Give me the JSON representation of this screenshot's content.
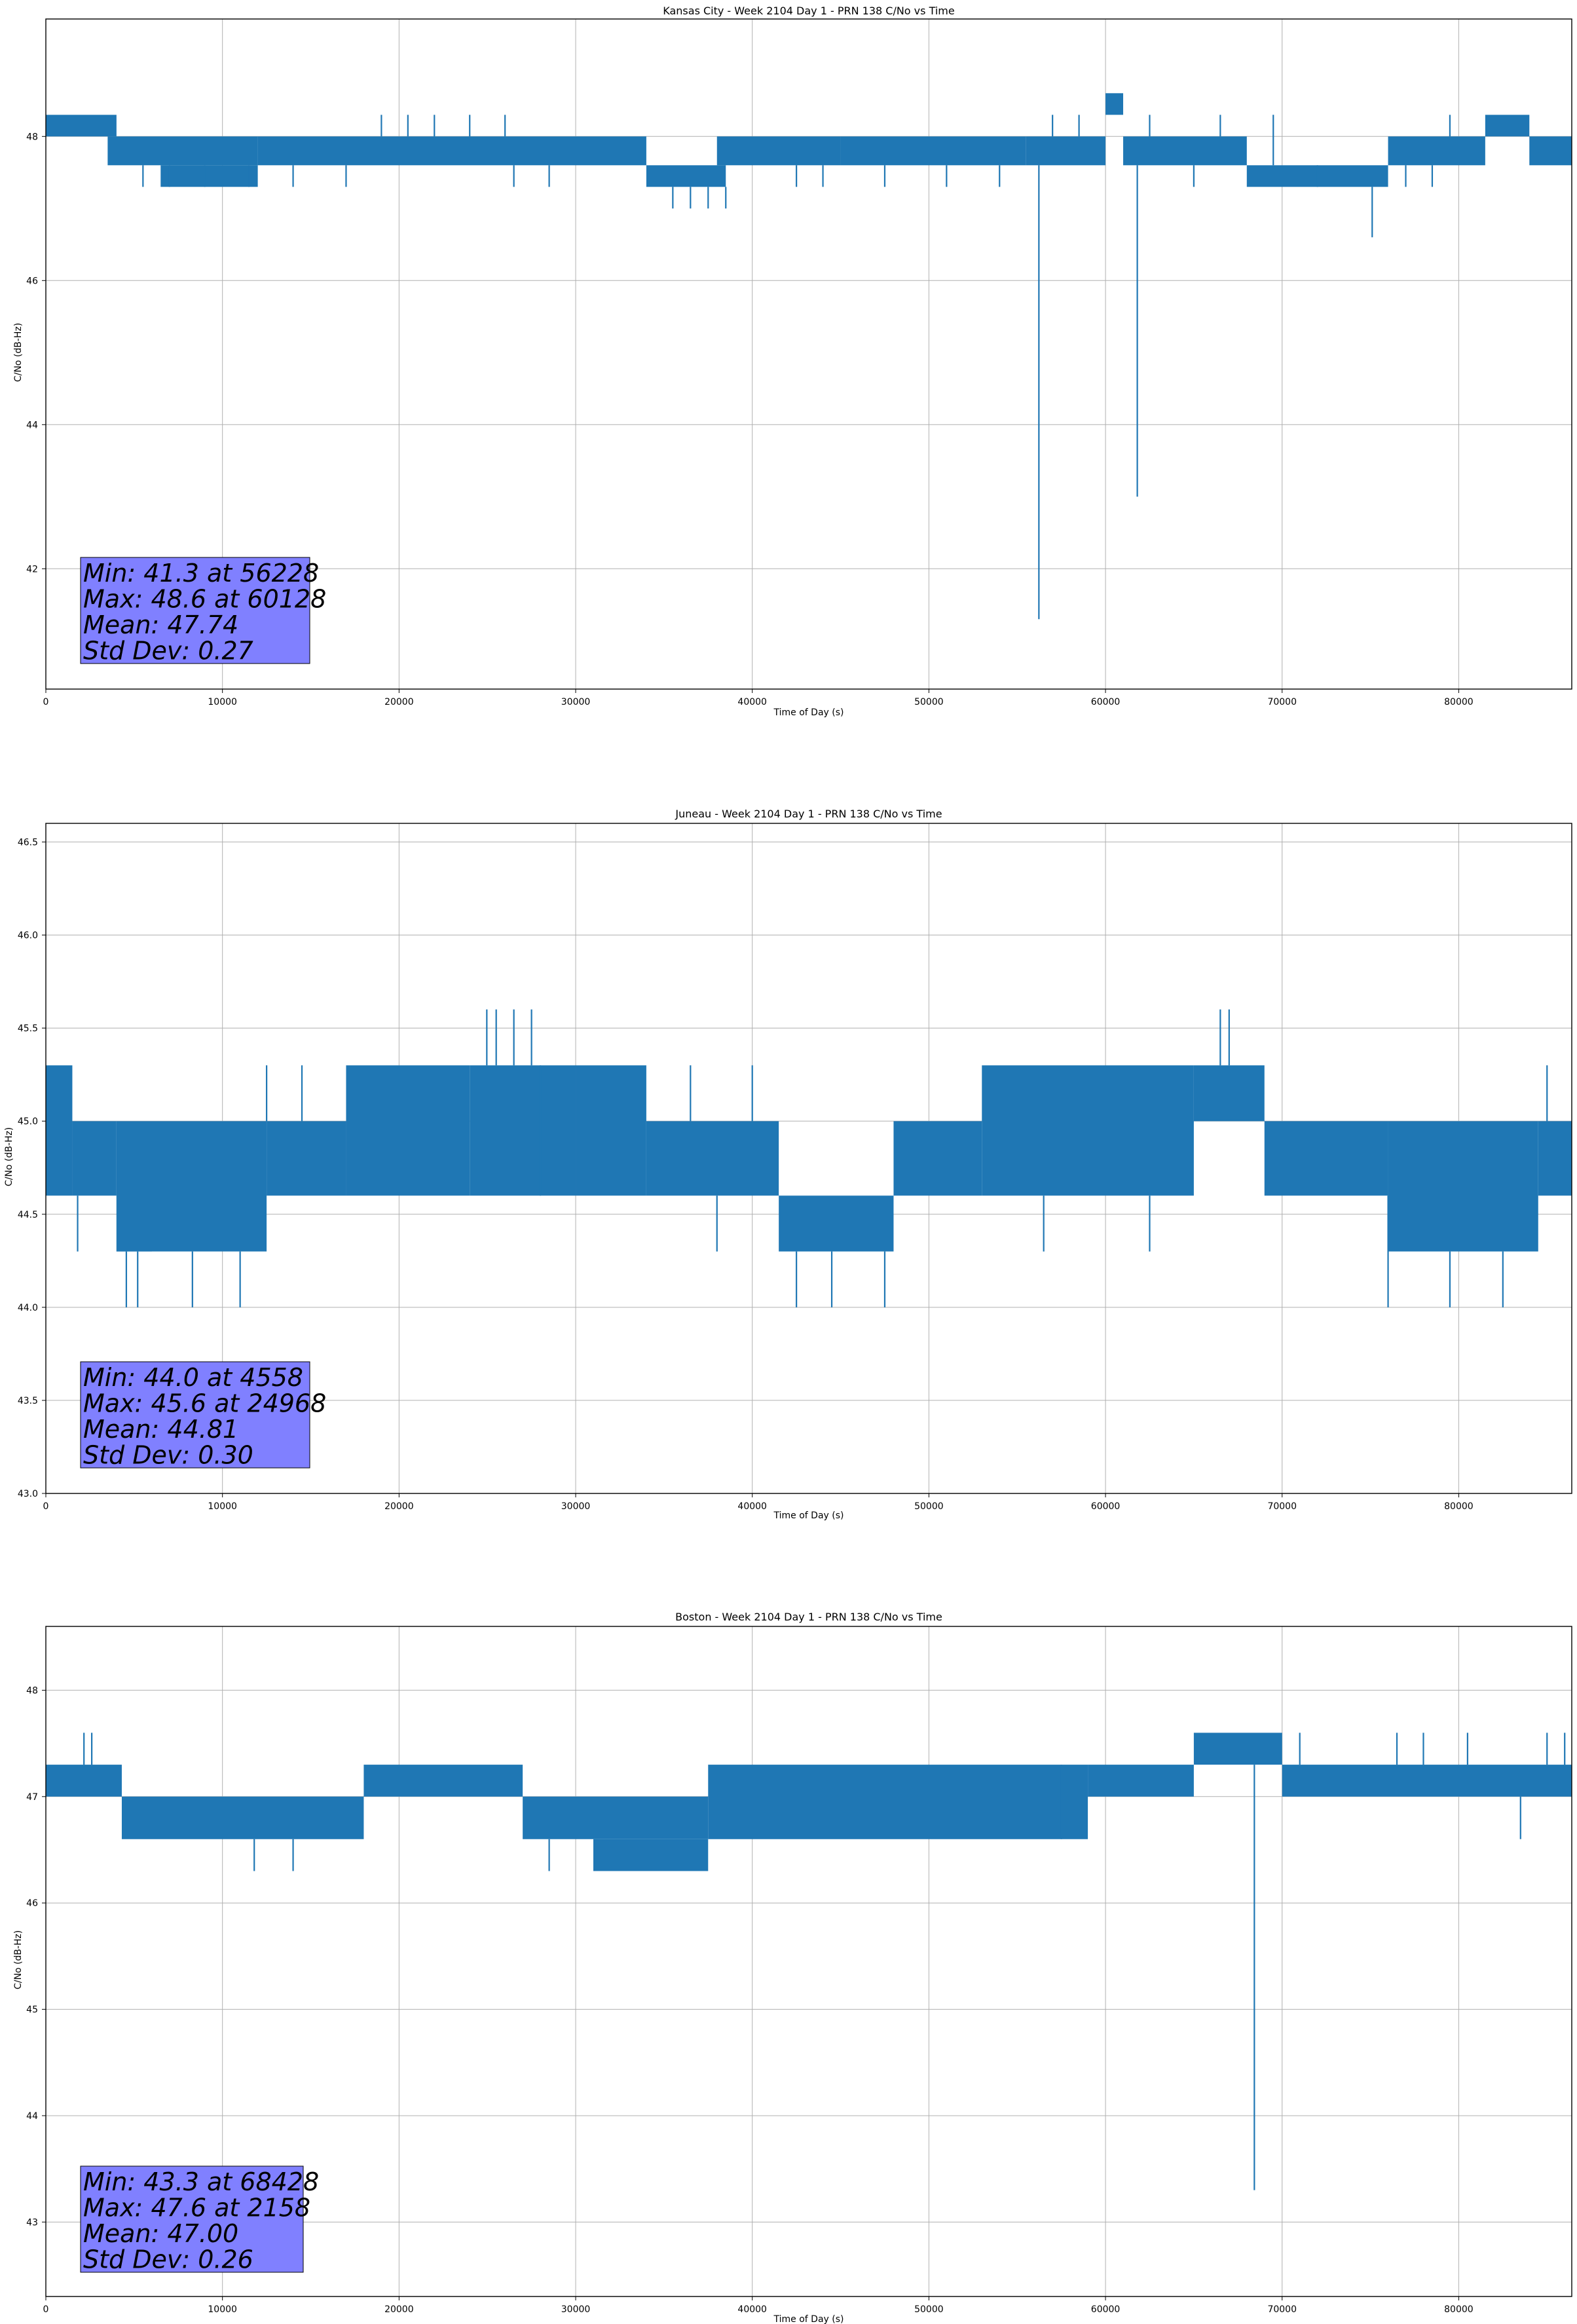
{
  "chart_data": [
    {
      "type": "line",
      "title": "Kansas City - Week 2104 Day 1 - PRN 138 C/No vs Time",
      "xlabel": "Time of Day (s)",
      "ylabel": "C/No (dB-Hz)",
      "xlim": [
        0,
        86400
      ],
      "ylim": [
        40.33,
        49.63
      ],
      "xticks": [
        0,
        10000,
        20000,
        30000,
        40000,
        50000,
        60000,
        70000,
        80000
      ],
      "yticks": [
        42,
        44,
        46,
        48
      ],
      "ytick_decimals": 0,
      "grid": true,
      "color": "#1f77b4",
      "stats_box": [
        "Min: 41.3 at 56228",
        "Max: 48.6 at 60128",
        "Mean: 47.74",
        "Std Dev: 0.27"
      ],
      "series": [
        {
          "segments": [
            {
              "x": [
                0,
                4000
              ],
              "y": [
                48.0,
                48.3
              ]
            },
            {
              "x": [
                3500,
                12000
              ],
              "y": [
                47.6,
                48.0
              ]
            },
            {
              "x": [
                6500,
                12000
              ],
              "y": [
                47.3,
                47.6
              ]
            },
            {
              "x": [
                12000,
                34000
              ],
              "y": [
                47.6,
                48.0
              ]
            },
            {
              "x": [
                34000,
                38500
              ],
              "y": [
                47.3,
                47.6
              ]
            },
            {
              "x": [
                38000,
                45000
              ],
              "y": [
                47.6,
                48.0
              ]
            },
            {
              "x": [
                45000,
                55500
              ],
              "y": [
                47.6,
                48.0
              ]
            },
            {
              "x": [
                55500,
                60000
              ],
              "y": [
                47.6,
                48.0
              ]
            },
            {
              "x": [
                60000,
                61000
              ],
              "y": [
                48.3,
                48.6
              ]
            },
            {
              "x": [
                61000,
                68000
              ],
              "y": [
                47.6,
                48.0
              ]
            },
            {
              "x": [
                68000,
                76000
              ],
              "y": [
                47.3,
                47.6
              ]
            },
            {
              "x": [
                76000,
                81500
              ],
              "y": [
                47.6,
                48.0
              ]
            },
            {
              "x": [
                81500,
                84000
              ],
              "y": [
                48.0,
                48.3
              ]
            },
            {
              "x": [
                84000,
                86400
              ],
              "y": [
                47.6,
                48.0
              ]
            }
          ],
          "spikes": [
            {
              "x": 4000,
              "y": 48.3
            },
            {
              "x": 5500,
              "y": 47.3
            },
            {
              "x": 7000,
              "y": 47.3
            },
            {
              "x": 9000,
              "y": 47.3
            },
            {
              "x": 11500,
              "y": 47.3
            },
            {
              "x": 14000,
              "y": 47.3
            },
            {
              "x": 17000,
              "y": 47.3
            },
            {
              "x": 19000,
              "y": 48.3
            },
            {
              "x": 20500,
              "y": 48.3
            },
            {
              "x": 22000,
              "y": 48.3
            },
            {
              "x": 24000,
              "y": 48.3
            },
            {
              "x": 26000,
              "y": 48.3
            },
            {
              "x": 26500,
              "y": 47.3
            },
            {
              "x": 28500,
              "y": 47.3
            },
            {
              "x": 35500,
              "y": 47.0
            },
            {
              "x": 36500,
              "y": 47.0
            },
            {
              "x": 37500,
              "y": 47.0
            },
            {
              "x": 38500,
              "y": 47.0
            },
            {
              "x": 42500,
              "y": 47.3
            },
            {
              "x": 44000,
              "y": 47.3
            },
            {
              "x": 47500,
              "y": 47.3
            },
            {
              "x": 51000,
              "y": 47.3
            },
            {
              "x": 54000,
              "y": 47.3
            },
            {
              "x": 56228,
              "y": 41.3
            },
            {
              "x": 57000,
              "y": 48.3
            },
            {
              "x": 58500,
              "y": 48.3
            },
            {
              "x": 61800,
              "y": 43.0
            },
            {
              "x": 62500,
              "y": 48.3
            },
            {
              "x": 65000,
              "y": 47.3
            },
            {
              "x": 66500,
              "y": 48.3
            },
            {
              "x": 69500,
              "y": 48.3
            },
            {
              "x": 72000,
              "y": 47.3
            },
            {
              "x": 75100,
              "y": 46.6
            },
            {
              "x": 77000,
              "y": 47.3
            },
            {
              "x": 78500,
              "y": 47.3
            },
            {
              "x": 79500,
              "y": 48.3
            }
          ]
        }
      ]
    },
    {
      "type": "line",
      "title": "Juneau - Week 2104 Day 1 - PRN 138 C/No vs Time",
      "xlabel": "Time of Day (s)",
      "ylabel": "C/No (dB-Hz)",
      "xlim": [
        0,
        86400
      ],
      "ylim": [
        43.0,
        46.6
      ],
      "xticks": [
        0,
        10000,
        20000,
        30000,
        40000,
        50000,
        60000,
        70000,
        80000
      ],
      "yticks": [
        43.0,
        43.5,
        44.0,
        44.5,
        45.0,
        45.5,
        46.0,
        46.5
      ],
      "ytick_decimals": 1,
      "grid": true,
      "color": "#1f77b4",
      "stats_box": [
        "Min: 44.0 at 4558",
        "Max: 45.6 at 24968",
        "Mean: 44.81",
        "Std Dev: 0.30"
      ],
      "series": [
        {
          "segments": [
            {
              "x": [
                0,
                1500
              ],
              "y": [
                44.6,
                45.3
              ]
            },
            {
              "x": [
                1500,
                4000
              ],
              "y": [
                44.6,
                45.0
              ]
            },
            {
              "x": [
                4000,
                6000
              ],
              "y": [
                44.3,
                44.6
              ]
            },
            {
              "x": [
                4000,
                12500
              ],
              "y": [
                44.3,
                45.0
              ]
            },
            {
              "x": [
                12500,
                17000
              ],
              "y": [
                44.6,
                45.0
              ]
            },
            {
              "x": [
                17000,
                24000
              ],
              "y": [
                44.6,
                45.3
              ]
            },
            {
              "x": [
                24000,
                30000
              ],
              "y": [
                44.6,
                45.3
              ]
            },
            {
              "x": [
                30000,
                34000
              ],
              "y": [
                44.6,
                45.3
              ]
            },
            {
              "x": [
                34000,
                41500
              ],
              "y": [
                44.6,
                45.0
              ]
            },
            {
              "x": [
                41500,
                48000
              ],
              "y": [
                44.3,
                44.6
              ]
            },
            {
              "x": [
                48000,
                53000
              ],
              "y": [
                44.6,
                45.0
              ]
            },
            {
              "x": [
                53000,
                65000
              ],
              "y": [
                44.6,
                45.3
              ]
            },
            {
              "x": [
                65000,
                69000
              ],
              "y": [
                45.0,
                45.3
              ]
            },
            {
              "x": [
                69000,
                76000
              ],
              "y": [
                44.6,
                45.0
              ]
            },
            {
              "x": [
                76000,
                84500
              ],
              "y": [
                44.3,
                45.0
              ]
            },
            {
              "x": [
                84500,
                86400
              ],
              "y": [
                44.6,
                45.0
              ]
            }
          ],
          "spikes": [
            {
              "x": 1800,
              "y": 44.3
            },
            {
              "x": 4558,
              "y": 44.0
            },
            {
              "x": 5200,
              "y": 44.0
            },
            {
              "x": 8300,
              "y": 44.0
            },
            {
              "x": 11000,
              "y": 44.0
            },
            {
              "x": 12500,
              "y": 45.3
            },
            {
              "x": 14500,
              "y": 45.3
            },
            {
              "x": 24968,
              "y": 45.6
            },
            {
              "x": 25500,
              "y": 45.6
            },
            {
              "x": 26500,
              "y": 45.6
            },
            {
              "x": 27500,
              "y": 45.6
            },
            {
              "x": 28000,
              "y": 44.6
            },
            {
              "x": 36500,
              "y": 45.3
            },
            {
              "x": 38000,
              "y": 44.3
            },
            {
              "x": 40000,
              "y": 45.3
            },
            {
              "x": 42500,
              "y": 44.0
            },
            {
              "x": 44500,
              "y": 44.0
            },
            {
              "x": 47500,
              "y": 44.0
            },
            {
              "x": 56500,
              "y": 44.3
            },
            {
              "x": 62500,
              "y": 44.3
            },
            {
              "x": 66500,
              "y": 45.6
            },
            {
              "x": 67000,
              "y": 45.6
            },
            {
              "x": 76000,
              "y": 44.0
            },
            {
              "x": 79500,
              "y": 44.0
            },
            {
              "x": 82500,
              "y": 44.0
            },
            {
              "x": 85000,
              "y": 45.3
            }
          ]
        }
      ]
    },
    {
      "type": "line",
      "title": "Boston - Week 2104 Day 1 - PRN 138 C/No vs Time",
      "xlabel": "Time of Day (s)",
      "ylabel": "C/No (dB-Hz)",
      "xlim": [
        0,
        86400
      ],
      "ylim": [
        42.3,
        48.6
      ],
      "xticks": [
        0,
        10000,
        20000,
        30000,
        40000,
        50000,
        60000,
        70000,
        80000
      ],
      "yticks": [
        43,
        44,
        45,
        46,
        47,
        48
      ],
      "ytick_decimals": 0,
      "grid": true,
      "color": "#1f77b4",
      "stats_box": [
        "Min: 43.3 at 68428",
        "Max: 47.6 at 2158",
        "Mean: 47.00",
        "Std Dev: 0.26"
      ],
      "series": [
        {
          "segments": [
            {
              "x": [
                0,
                4300
              ],
              "y": [
                47.0,
                47.3
              ]
            },
            {
              "x": [
                4300,
                18000
              ],
              "y": [
                46.6,
                47.0
              ]
            },
            {
              "x": [
                18000,
                27000
              ],
              "y": [
                47.0,
                47.3
              ]
            },
            {
              "x": [
                27000,
                31000
              ],
              "y": [
                46.6,
                47.0
              ]
            },
            {
              "x": [
                31000,
                37500
              ],
              "y": [
                46.3,
                46.6
              ]
            },
            {
              "x": [
                31000,
                37500
              ],
              "y": [
                46.6,
                47.0
              ]
            },
            {
              "x": [
                37500,
                59000
              ],
              "y": [
                46.6,
                47.3
              ]
            },
            {
              "x": [
                59000,
                65000
              ],
              "y": [
                47.0,
                47.3
              ]
            },
            {
              "x": [
                65000,
                70000
              ],
              "y": [
                47.3,
                47.6
              ]
            },
            {
              "x": [
                70000,
                86400
              ],
              "y": [
                47.0,
                47.3
              ]
            }
          ],
          "spikes": [
            {
              "x": 2158,
              "y": 47.6
            },
            {
              "x": 2600,
              "y": 47.6
            },
            {
              "x": 11800,
              "y": 46.3
            },
            {
              "x": 14000,
              "y": 46.3
            },
            {
              "x": 28500,
              "y": 46.3
            },
            {
              "x": 57500,
              "y": 46.6
            },
            {
              "x": 68428,
              "y": 43.3
            },
            {
              "x": 71000,
              "y": 47.6
            },
            {
              "x": 76500,
              "y": 47.6
            },
            {
              "x": 78000,
              "y": 47.6
            },
            {
              "x": 80500,
              "y": 47.6
            },
            {
              "x": 83500,
              "y": 46.6
            },
            {
              "x": 85000,
              "y": 47.6
            },
            {
              "x": 86000,
              "y": 47.6
            }
          ]
        }
      ]
    }
  ]
}
